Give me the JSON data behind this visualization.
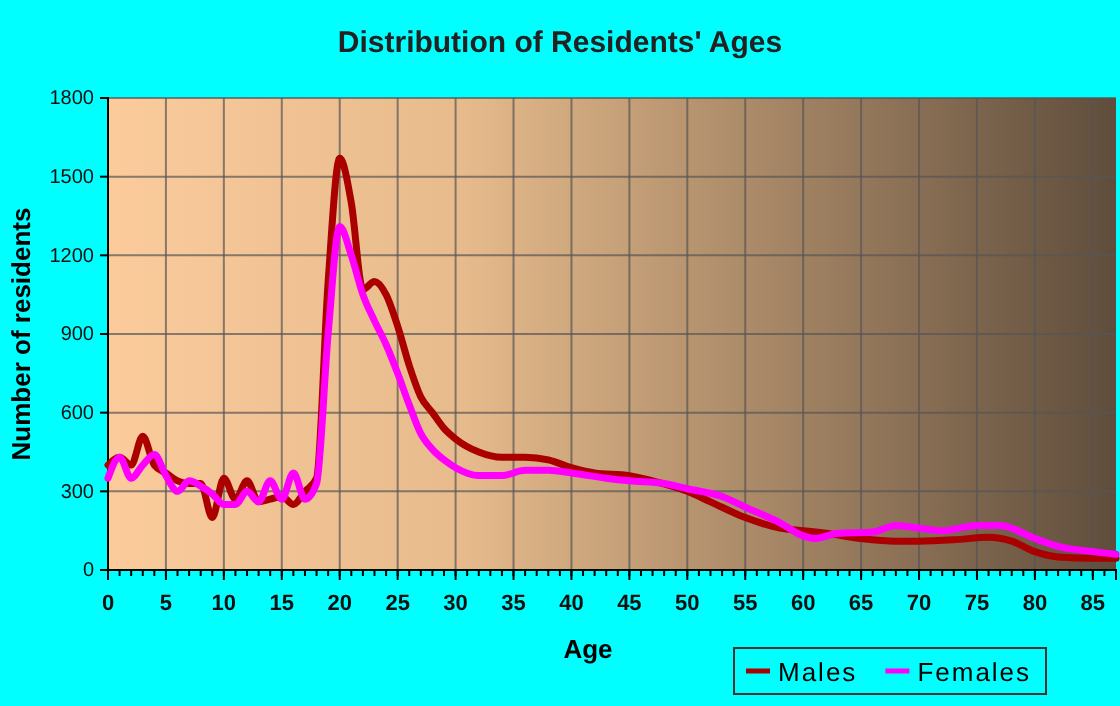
{
  "chart_data": {
    "type": "line",
    "title": "Distribution of Residents' Ages",
    "xlabel": "Age",
    "ylabel": "Number of residents",
    "xlim": [
      0,
      87
    ],
    "xticks": [
      0,
      5,
      10,
      15,
      20,
      25,
      30,
      35,
      40,
      45,
      50,
      55,
      60,
      65,
      70,
      75,
      80,
      85
    ],
    "ylim": [
      0,
      1800
    ],
    "yticks": [
      0,
      300,
      600,
      900,
      1200,
      1500,
      1800
    ],
    "grid": true,
    "legend": "bottom right",
    "marker": "none",
    "line_style": "solid",
    "series": [
      {
        "name": "Males",
        "color": "#aa0000",
        "x": [
          0,
          1,
          2,
          3,
          4,
          5,
          6,
          7,
          8,
          9,
          10,
          11,
          12,
          13,
          14,
          15,
          16,
          17,
          18,
          19,
          20,
          21,
          22,
          23,
          24,
          25,
          26,
          27,
          28,
          29,
          30,
          32,
          34,
          36,
          38,
          40,
          42,
          45,
          47,
          50,
          52,
          55,
          58,
          60,
          62,
          65,
          68,
          70,
          73,
          76,
          78,
          80,
          82,
          85,
          87
        ],
        "values": [
          400,
          430,
          400,
          510,
          400,
          370,
          340,
          330,
          330,
          200,
          350,
          270,
          340,
          260,
          270,
          280,
          250,
          300,
          350,
          1100,
          1570,
          1400,
          1070,
          1100,
          1050,
          930,
          780,
          660,
          600,
          540,
          500,
          450,
          430,
          430,
          420,
          390,
          370,
          360,
          340,
          300,
          260,
          200,
          160,
          150,
          140,
          120,
          110,
          110,
          115,
          125,
          110,
          70,
          50,
          45,
          45
        ]
      },
      {
        "name": "Females",
        "color": "#ff00ff",
        "x": [
          0,
          1,
          2,
          3,
          4,
          5,
          6,
          7,
          8,
          9,
          10,
          11,
          12,
          13,
          14,
          15,
          16,
          17,
          18,
          19,
          20,
          21,
          22,
          23,
          24,
          25,
          26,
          27,
          28,
          29,
          30,
          32,
          34,
          36,
          38,
          40,
          43,
          45,
          48,
          50,
          53,
          55,
          58,
          60,
          61,
          63,
          66,
          68,
          70,
          72,
          75,
          77,
          80,
          82,
          85,
          87
        ],
        "values": [
          350,
          430,
          350,
          400,
          440,
          360,
          300,
          340,
          320,
          290,
          250,
          250,
          300,
          260,
          340,
          270,
          370,
          270,
          330,
          900,
          1310,
          1200,
          1050,
          950,
          860,
          750,
          630,
          520,
          460,
          420,
          390,
          360,
          360,
          380,
          380,
          370,
          350,
          340,
          330,
          310,
          280,
          240,
          180,
          130,
          120,
          140,
          145,
          170,
          160,
          150,
          170,
          170,
          120,
          90,
          70,
          60
        ]
      }
    ]
  }
}
